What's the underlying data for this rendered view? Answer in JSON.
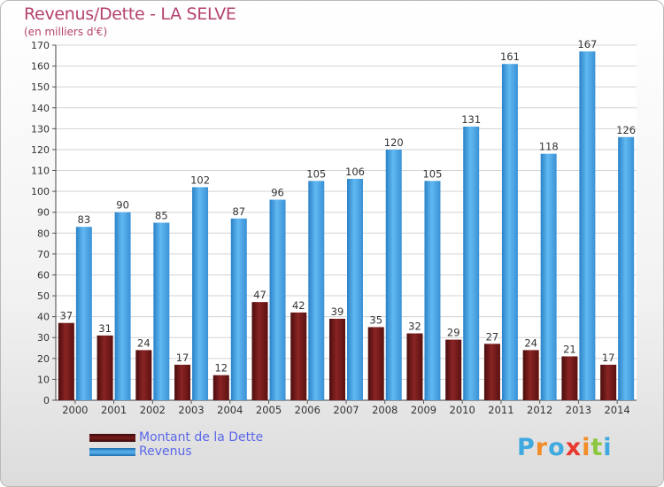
{
  "header": {
    "title": "Revenus/Dette - LA SELVE",
    "subtitle": "(en milliers d'€)"
  },
  "chart_data": {
    "type": "bar",
    "title": "Revenus/Dette - LA SELVE",
    "subtitle": "(en milliers d'€)",
    "categories": [
      "2000",
      "2001",
      "2002",
      "2003",
      "2004",
      "2005",
      "2006",
      "2007",
      "2008",
      "2009",
      "2010",
      "2011",
      "2012",
      "2013",
      "2014"
    ],
    "series": [
      {
        "name": "Montant de la Dette",
        "color": "#7a1c1c",
        "values": [
          37,
          31,
          24,
          17,
          12,
          47,
          42,
          39,
          35,
          32,
          29,
          27,
          24,
          21,
          17
        ]
      },
      {
        "name": "Revenus",
        "color": "#3f9de0",
        "values": [
          83,
          90,
          85,
          102,
          87,
          96,
          105,
          106,
          120,
          105,
          131,
          161,
          118,
          167,
          126
        ]
      }
    ],
    "ylim": [
      0,
      170
    ],
    "ytick_step": 10,
    "grid": true,
    "legend_position": "bottom-left"
  },
  "logo": {
    "letters": [
      "P",
      "r",
      "o",
      "x",
      "i",
      "t",
      "i"
    ],
    "colors": [
      "#3fa9e0",
      "#f28c28",
      "#3fa9e0",
      "#e8392f",
      "#f28c28",
      "#8dc63f",
      "#3fa9e0"
    ]
  }
}
